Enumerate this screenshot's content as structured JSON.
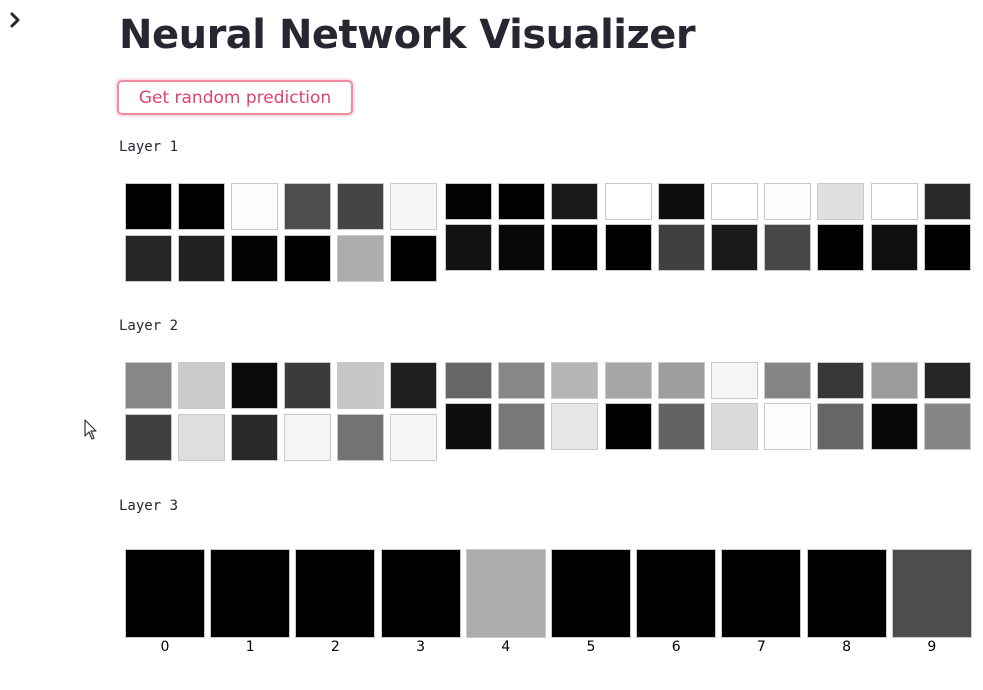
{
  "app": {
    "title": "Neural Network Visualizer",
    "predict_button_label": "Get random prediction"
  },
  "icons": {
    "sidebar_toggle": "chevron-right-icon",
    "cursor": "mouse-pointer-icon"
  },
  "colors": {
    "accent": "#f08ba1",
    "button_text": "#e0436a",
    "title_text": "#262730"
  },
  "layers": [
    {
      "label": "Layer 1",
      "activations": [
        [
          0.0,
          0.0,
          0.99,
          0.3,
          0.27,
          0.96,
          0.01,
          0.0,
          0.1,
          1.0,
          0.05,
          1.0,
          0.99,
          0.88,
          1.0,
          0.16
        ],
        [
          0.15,
          0.13,
          0.01,
          0.0,
          0.68,
          0.0,
          0.07,
          0.03,
          0.0,
          0.0,
          0.25,
          0.1,
          0.28,
          0.0,
          0.06,
          0.0
        ]
      ]
    },
    {
      "label": "Layer 2",
      "activations": [
        [
          0.53,
          0.8,
          0.04,
          0.23,
          0.78,
          0.12,
          0.4,
          0.53,
          0.71,
          0.65,
          0.62,
          0.96,
          0.52,
          0.22,
          0.61,
          0.15
        ],
        [
          0.25,
          0.87,
          0.16,
          0.96,
          0.45,
          0.96,
          0.05,
          0.47,
          0.9,
          0.0,
          0.39,
          0.86,
          0.99,
          0.4,
          0.03,
          0.52
        ]
      ]
    },
    {
      "label": "Layer 3",
      "digits": [
        "0",
        "1",
        "2",
        "3",
        "4",
        "5",
        "6",
        "7",
        "8",
        "9"
      ],
      "activations": [
        0.0,
        0.0,
        0.0,
        0.0,
        0.68,
        0.0,
        0.0,
        0.0,
        0.0,
        0.3
      ]
    }
  ]
}
